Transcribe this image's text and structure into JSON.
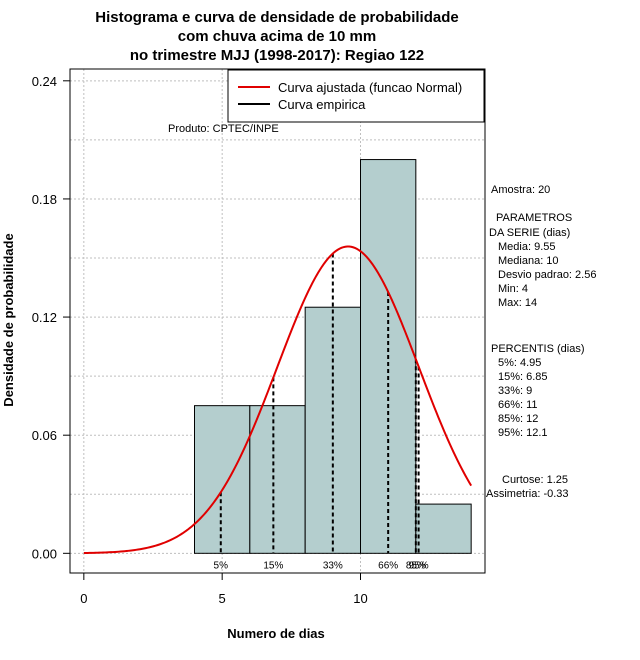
{
  "chart_data": {
    "type": "histogram",
    "title_lines": [
      "Histograma e curva de densidade de probabilidade",
      "com chuva acima de 10 mm",
      "no trimestre MJJ (1998-2017): Regiao 122"
    ],
    "xlabel": "Numero de dias",
    "ylabel": "Densidade de probabilidade",
    "xlim": [
      -0.5,
      14.5
    ],
    "ylim": [
      -0.01,
      0.246
    ],
    "x_ticks": [
      0,
      5,
      10
    ],
    "y_ticks": [
      "0.00",
      "0.06",
      "0.12",
      "0.18",
      "0.24"
    ],
    "y_tick_values": [
      0,
      0.06,
      0.12,
      0.18,
      0.24
    ],
    "bins": [
      {
        "x0": 4,
        "x1": 6,
        "density": 0.075
      },
      {
        "x0": 6,
        "x1": 8,
        "density": 0.075
      },
      {
        "x0": 8,
        "x1": 10,
        "density": 0.125
      },
      {
        "x0": 10,
        "x1": 12,
        "density": 0.2
      },
      {
        "x0": 12,
        "x1": 14,
        "density": 0.025
      }
    ],
    "fit_curve": {
      "name": "Curva ajustada (funcao Normal)",
      "mean": 9.55,
      "sd": 2.56,
      "x_range": [
        0,
        14
      ],
      "color": "#e00000"
    },
    "empirical_curve": {
      "name": "Curva empirica",
      "color": "#000000"
    },
    "percentile_lines": [
      {
        "label": "5%",
        "x": 4.95
      },
      {
        "label": "15%",
        "x": 6.85
      },
      {
        "label": "33%",
        "x": 9
      },
      {
        "label": "66%",
        "x": 11
      },
      {
        "label": "85%",
        "x": 12
      },
      {
        "label": "95%",
        "x": 12.1
      }
    ],
    "grid": true,
    "legend_position": "top-right",
    "source_note": "Produto: CPTEC/INPE",
    "bar_color": "#b4cece"
  },
  "stats": {
    "sample": "Amostra: 20",
    "params_title_1": "PARAMETROS",
    "params_title_2": "DA SERIE (dias)",
    "media": "Media: 9.55",
    "mediana": "Mediana: 10",
    "desvio": "Desvio padrao: 2.56",
    "min": "Min: 4",
    "max": "Max: 14",
    "pct_title": "PERCENTIS (dias)",
    "p5": "5%: 4.95",
    "p15": "15%: 6.85",
    "p33": "33%: 9",
    "p66": "66%: 11",
    "p85": "85%: 12",
    "p95": "95%: 12.1",
    "curtose": "Curtose: 1.25",
    "assimetria": "Assimetria: -0.33"
  }
}
